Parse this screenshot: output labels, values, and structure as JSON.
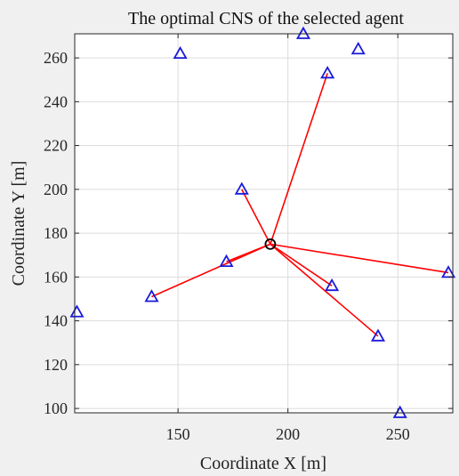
{
  "chart_data": {
    "type": "scatter",
    "title": "The optimal CNS of the selected agent",
    "xlabel": "Coordinate X [m]",
    "ylabel": "Coordinate Y [m]",
    "xlim": [
      103,
      275
    ],
    "ylim": [
      98,
      271
    ],
    "xticks": [
      150,
      200,
      250
    ],
    "yticks": [
      100,
      120,
      140,
      160,
      180,
      200,
      220,
      240,
      260
    ],
    "grid": true,
    "legend": "none",
    "selected_agent": {
      "x": 192,
      "y": 175
    },
    "agents": [
      {
        "x": 104,
        "y": 144
      },
      {
        "x": 138,
        "y": 151
      },
      {
        "x": 151,
        "y": 262
      },
      {
        "x": 172,
        "y": 167
      },
      {
        "x": 179,
        "y": 200
      },
      {
        "x": 207,
        "y": 271
      },
      {
        "x": 218,
        "y": 253
      },
      {
        "x": 220,
        "y": 156
      },
      {
        "x": 232,
        "y": 264
      },
      {
        "x": 241,
        "y": 133
      },
      {
        "x": 251,
        "y": 98
      },
      {
        "x": 273,
        "y": 162
      }
    ],
    "links": [
      {
        "from": [
          192,
          175
        ],
        "to": [
          138,
          151
        ]
      },
      {
        "from": [
          192,
          175
        ],
        "to": [
          172,
          167
        ]
      },
      {
        "from": [
          192,
          175
        ],
        "to": [
          179,
          200
        ]
      },
      {
        "from": [
          192,
          175
        ],
        "to": [
          218,
          253
        ]
      },
      {
        "from": [
          192,
          175
        ],
        "to": [
          220,
          156
        ]
      },
      {
        "from": [
          192,
          175
        ],
        "to": [
          241,
          133
        ]
      },
      {
        "from": [
          192,
          175
        ],
        "to": [
          273,
          162
        ]
      }
    ],
    "colors": {
      "agent_marker": "#1a1adb",
      "selected_marker": "#000000",
      "link": "#ff0000",
      "axes_background": "#ffffff"
    }
  }
}
